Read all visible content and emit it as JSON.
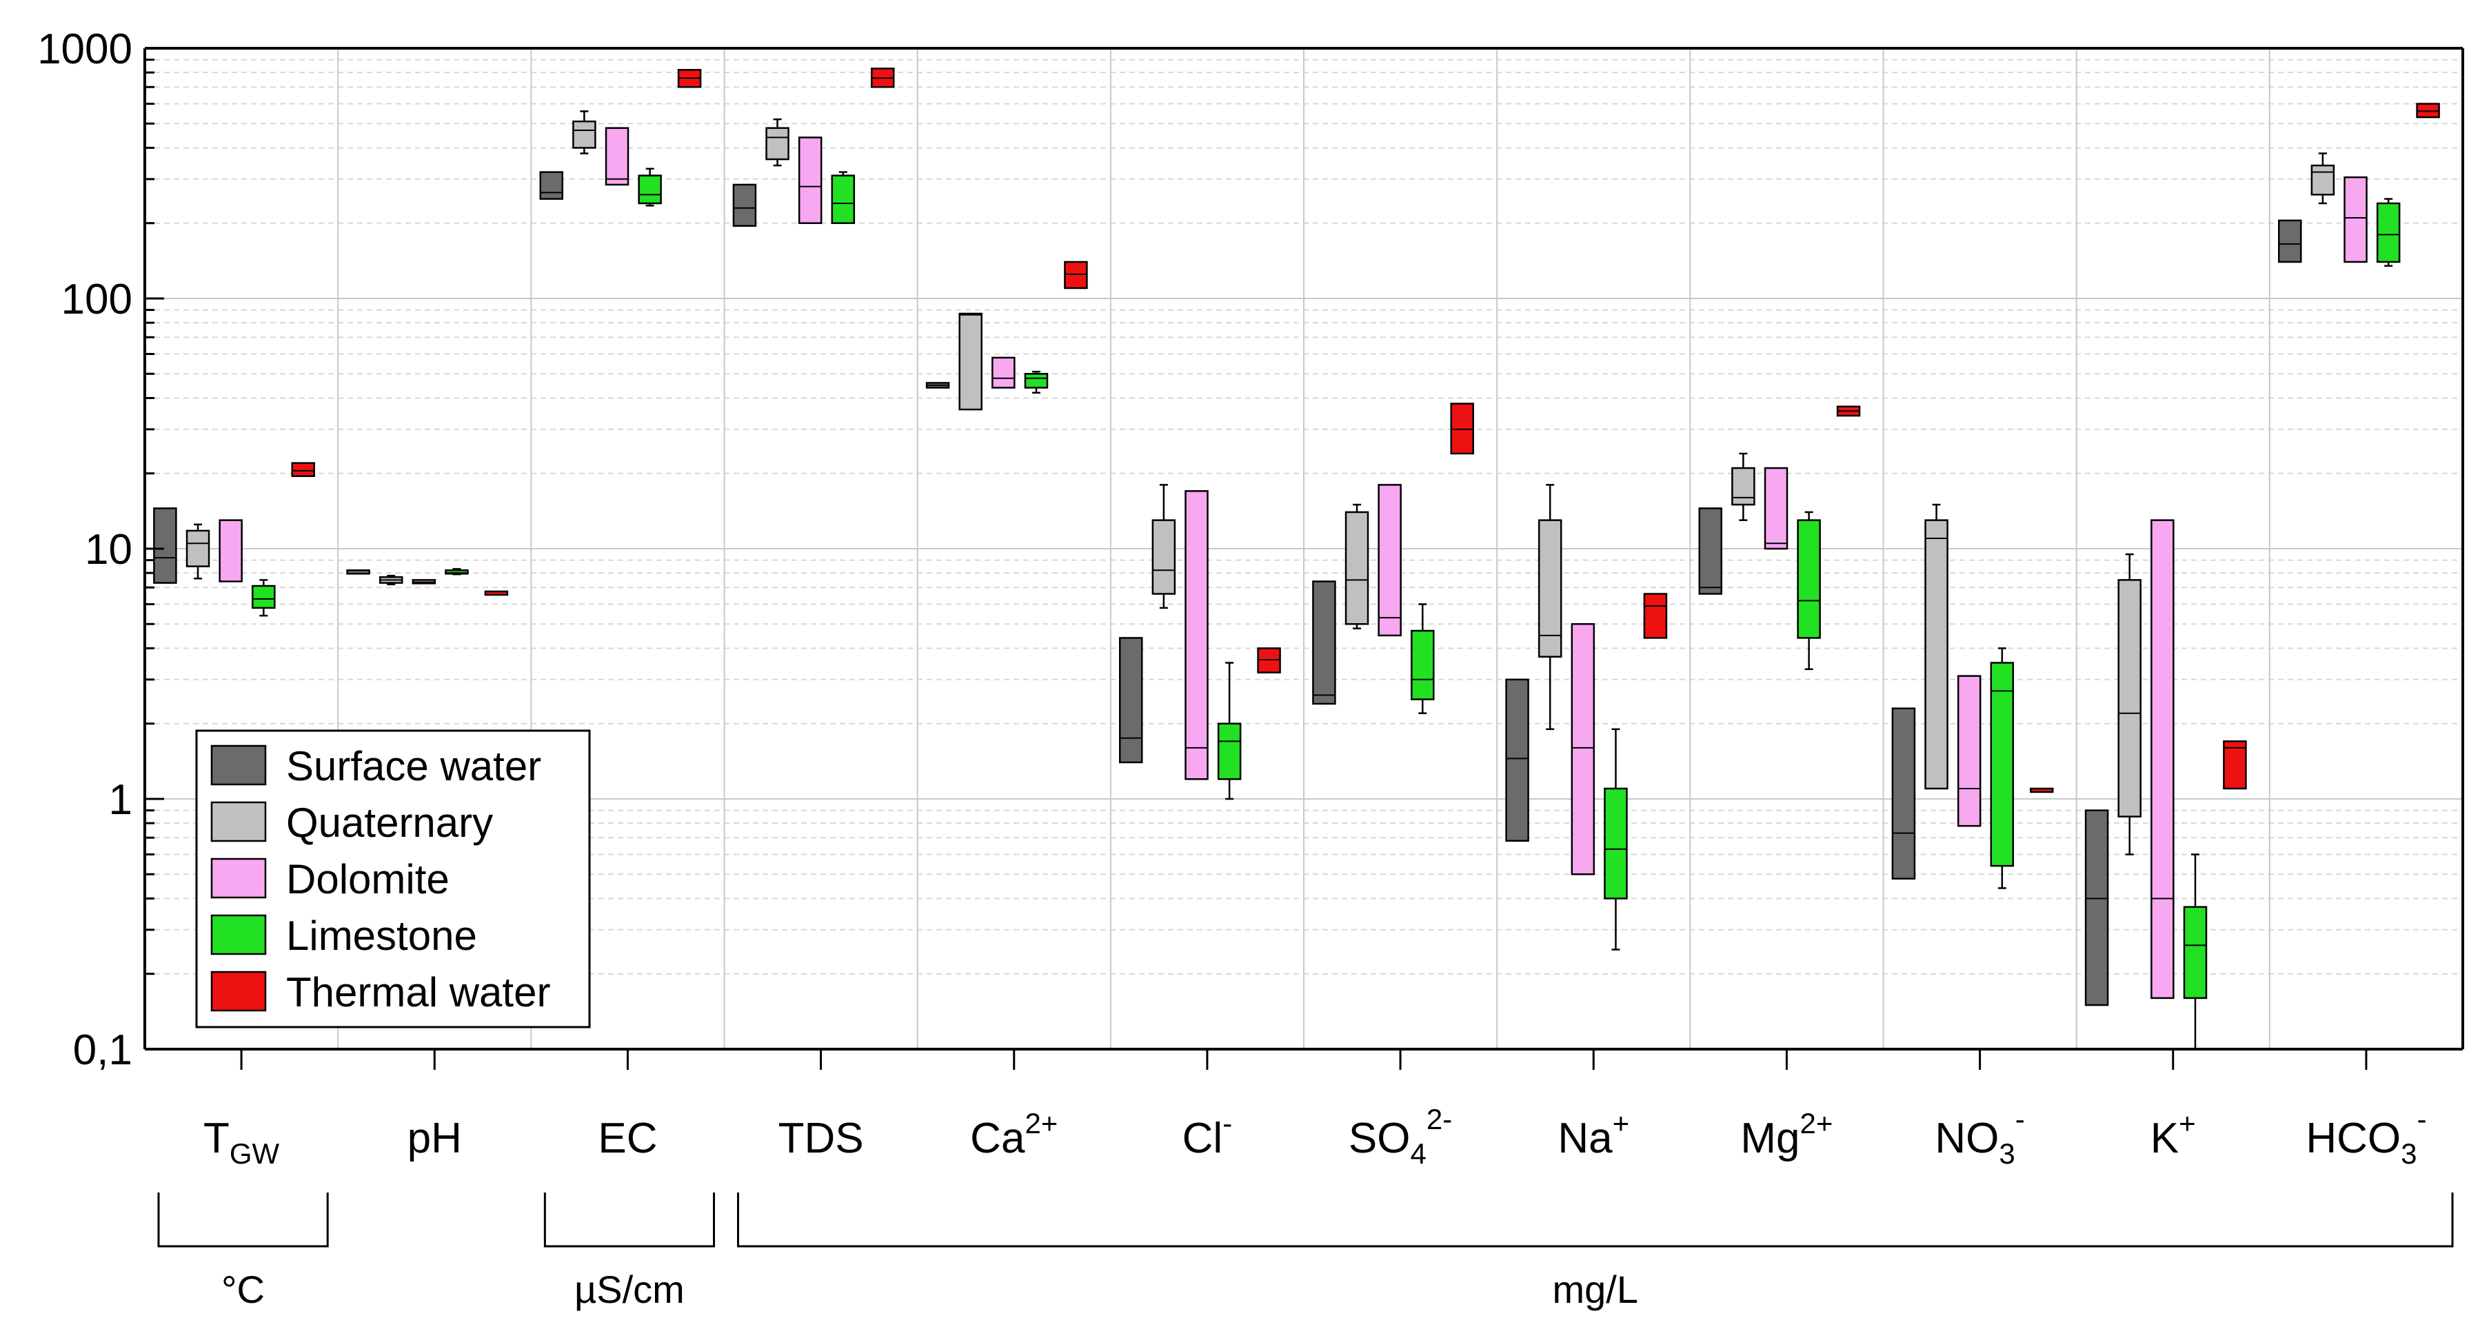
{
  "chart_data": {
    "type": "box",
    "y_scale": "log",
    "ylim": [
      0.1,
      1000
    ],
    "y_ticks": [
      {
        "value": 1000,
        "label": "1000"
      },
      {
        "value": 100,
        "label": "100"
      },
      {
        "value": 10,
        "label": "10"
      },
      {
        "value": 1,
        "label": "1"
      },
      {
        "value": 0.1,
        "label": "0,1"
      }
    ],
    "grid": true,
    "legend_position": "bottom-left",
    "categories": [
      {
        "base": "T",
        "sub": "GW",
        "sup": ""
      },
      {
        "base": "pH",
        "sub": "",
        "sup": ""
      },
      {
        "base": "EC",
        "sub": "",
        "sup": ""
      },
      {
        "base": "TDS",
        "sub": "",
        "sup": ""
      },
      {
        "base": "Ca",
        "sub": "",
        "sup": "2+"
      },
      {
        "base": "Cl",
        "sub": "",
        "sup": "-"
      },
      {
        "base": "SO",
        "sub": "4",
        "sup": "2-"
      },
      {
        "base": "Na",
        "sub": "",
        "sup": "+"
      },
      {
        "base": "Mg",
        "sub": "",
        "sup": "2+"
      },
      {
        "base": "NO",
        "sub": "3",
        "sup": "-"
      },
      {
        "base": "K",
        "sub": "",
        "sup": "+"
      },
      {
        "base": "HCO",
        "sub": "3",
        "sup": "-"
      }
    ],
    "unit_groups": [
      {
        "label": "°C",
        "from": 0,
        "to": 0
      },
      {
        "label": "µS/cm",
        "from": 2,
        "to": 2
      },
      {
        "label": "mg/L",
        "from": 3,
        "to": 11
      }
    ],
    "series": [
      {
        "name": "Surface water",
        "color": "#6b6b6b",
        "stats": [
          [
            7.3,
            7.3,
            9.2,
            14.5,
            14.5
          ],
          [
            8.2,
            8.2,
            8.2,
            8.2,
            8.2
          ],
          [
            250,
            250,
            265,
            320,
            320
          ],
          [
            195,
            195,
            230,
            285,
            285
          ],
          [
            44,
            44,
            45,
            46,
            46
          ],
          [
            1.4,
            1.4,
            1.75,
            4.4,
            4.4
          ],
          [
            2.4,
            2.4,
            2.6,
            7.4,
            7.4
          ],
          [
            0.68,
            0.68,
            1.45,
            3.0,
            3.0
          ],
          [
            6.6,
            6.6,
            7.0,
            14.5,
            14.5
          ],
          [
            0.48,
            0.48,
            0.73,
            2.3,
            2.3
          ],
          [
            0.15,
            0.15,
            0.4,
            0.9,
            0.9
          ],
          [
            140,
            140,
            165,
            205,
            205
          ]
        ]
      },
      {
        "name": "Quaternary",
        "color": "#c0c0c0",
        "stats": [
          [
            7.6,
            8.5,
            10.5,
            11.8,
            12.5
          ],
          [
            7.2,
            7.3,
            7.5,
            7.7,
            7.8
          ],
          [
            380,
            400,
            470,
            510,
            560
          ],
          [
            340,
            360,
            440,
            480,
            520
          ],
          [
            36,
            36,
            86,
            87,
            87
          ],
          [
            5.8,
            6.6,
            8.2,
            13,
            18
          ],
          [
            4.8,
            5.0,
            7.5,
            14,
            15
          ],
          [
            1.9,
            3.7,
            4.5,
            13,
            18
          ],
          [
            13,
            15,
            16,
            21,
            24
          ],
          [
            1.1,
            1.1,
            11,
            13,
            15
          ],
          [
            0.6,
            0.85,
            2.2,
            7.5,
            9.5
          ],
          [
            240,
            260,
            320,
            340,
            380
          ]
        ]
      },
      {
        "name": "Dolomite",
        "color": "#f7a8f0",
        "stats": [
          [
            7.4,
            7.4,
            7.4,
            13,
            13
          ],
          [
            7.3,
            7.3,
            7.35,
            7.5,
            7.5
          ],
          [
            285,
            285,
            300,
            480,
            480
          ],
          [
            200,
            200,
            280,
            440,
            440
          ],
          [
            44,
            44,
            48,
            58,
            58
          ],
          [
            1.2,
            1.2,
            1.6,
            17,
            17
          ],
          [
            4.5,
            4.5,
            5.3,
            18,
            18
          ],
          [
            0.5,
            0.5,
            1.6,
            5.0,
            5.0
          ],
          [
            10,
            10,
            10.5,
            21,
            21
          ],
          [
            0.78,
            0.78,
            1.1,
            3.1,
            3.1
          ],
          [
            0.16,
            0.16,
            0.4,
            13,
            13
          ],
          [
            140,
            140,
            210,
            305,
            305
          ]
        ]
      },
      {
        "name": "Limestone",
        "color": "#22e022",
        "stats": [
          [
            5.4,
            5.8,
            6.3,
            7.1,
            7.5
          ],
          [
            7.9,
            7.95,
            8.0,
            8.2,
            8.3
          ],
          [
            235,
            240,
            260,
            310,
            330
          ],
          [
            200,
            200,
            240,
            310,
            320
          ],
          [
            42,
            44,
            48,
            50,
            51
          ],
          [
            1.0,
            1.2,
            1.7,
            2.0,
            3.5
          ],
          [
            2.2,
            2.5,
            3.0,
            4.7,
            6.0
          ],
          [
            0.25,
            0.4,
            0.63,
            1.1,
            1.9
          ],
          [
            3.3,
            4.4,
            6.2,
            13,
            14
          ],
          [
            0.44,
            0.54,
            2.7,
            3.5,
            4.0
          ],
          [
            0.1,
            0.16,
            0.26,
            0.37,
            0.6
          ],
          [
            135,
            140,
            180,
            240,
            250
          ]
        ]
      },
      {
        "name": "Thermal water",
        "color": "#ee1111",
        "stats": [
          [
            19.5,
            19.5,
            20.5,
            22,
            22
          ],
          [
            6.75,
            6.75,
            6.75,
            6.75,
            6.75
          ],
          [
            700,
            700,
            760,
            820,
            820
          ],
          [
            700,
            700,
            760,
            830,
            830
          ],
          [
            110,
            110,
            125,
            140,
            140
          ],
          [
            3.2,
            3.2,
            3.6,
            4.0,
            4.0
          ],
          [
            24,
            24,
            30,
            38,
            38
          ],
          [
            4.4,
            4.4,
            5.9,
            6.6,
            6.6
          ],
          [
            34,
            34,
            35.5,
            37,
            37
          ],
          [
            1.1,
            1.1,
            1.1,
            1.1,
            1.1
          ],
          [
            1.1,
            1.1,
            1.6,
            1.7,
            1.7
          ],
          [
            530,
            530,
            560,
            600,
            600
          ]
        ]
      }
    ]
  }
}
